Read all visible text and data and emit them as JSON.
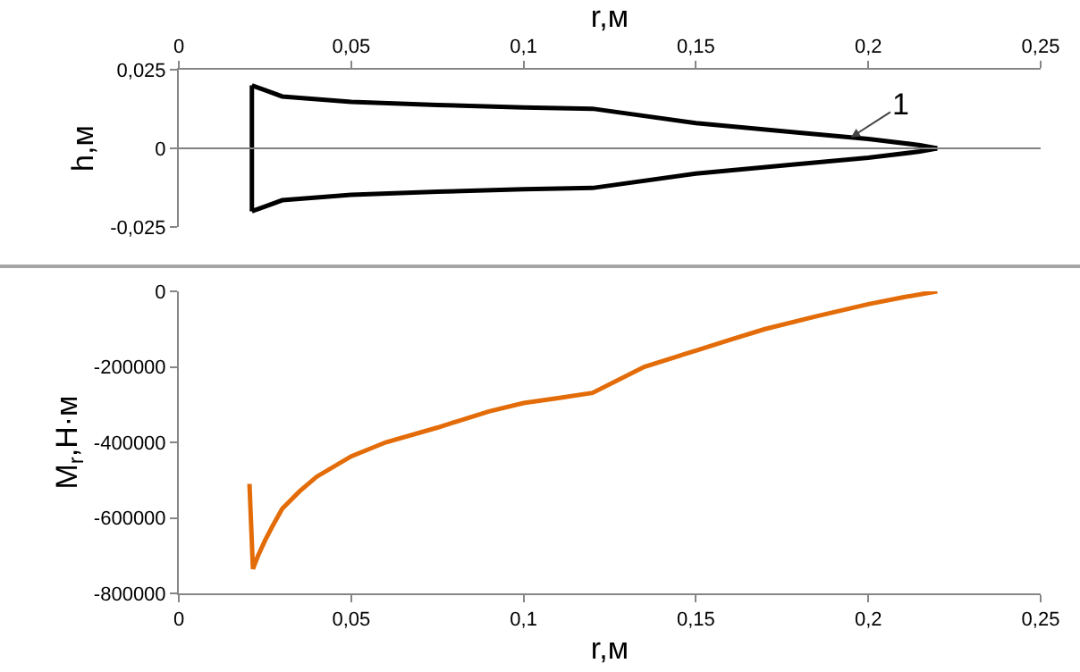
{
  "chart_data": [
    {
      "type": "line",
      "ylabel": "h,м",
      "xlabel": "r,м",
      "xlim": [
        0,
        0.25
      ],
      "xticks": [
        0,
        {
          "value": 0.05,
          "label": "0,05"
        },
        {
          "value": 0.1,
          "label": "0,1"
        },
        {
          "value": 0.15,
          "label": "0,15"
        },
        {
          "value": 0.2,
          "label": "0,2"
        },
        {
          "value": 0.25,
          "label": "0,25"
        }
      ],
      "ylim": [
        -0.025,
        0.025
      ],
      "yticks": [
        {
          "value": -0.025,
          "label": "-0,025"
        },
        0,
        {
          "value": 0.025,
          "label": "0,025"
        }
      ],
      "grid": false,
      "marker": "none",
      "line_style": "solid",
      "series": [
        {
          "color": "#000000",
          "x": [
            0.0212,
            0.025,
            0.03,
            0.05,
            0.075,
            0.1,
            0.12,
            0.15,
            0.18,
            0.2,
            0.215,
            0.22
          ],
          "values": [
            0.02,
            0.0185,
            0.0165,
            0.0148,
            0.0138,
            0.013,
            0.0126,
            0.008,
            0.005,
            0.003,
            0.001,
            0
          ]
        },
        {
          "color": "#000000",
          "x": [
            0.0212,
            0.025,
            0.03,
            0.05,
            0.075,
            0.1,
            0.12,
            0.15,
            0.18,
            0.2,
            0.215,
            0.22
          ],
          "values": [
            -0.02,
            -0.0185,
            -0.0165,
            -0.0148,
            -0.0138,
            -0.013,
            -0.0126,
            -0.008,
            -0.005,
            -0.003,
            -0.001,
            0
          ]
        },
        {
          "color": "#000000",
          "x": [
            0.0212,
            0.0212
          ],
          "values": [
            -0.02,
            0.02
          ]
        }
      ],
      "ref_lines": [
        {
          "axis": "y",
          "value": 0,
          "color": "#808080"
        }
      ],
      "annotations": [
        {
          "text": "1",
          "x": 0.195,
          "y": 0.0035
        }
      ]
    },
    {
      "type": "line",
      "xlabel": "r,м",
      "ylabel": "M$_{r}$,Н·м",
      "xlim": [
        0,
        0.25
      ],
      "xticks": [
        0,
        {
          "value": 0.05,
          "label": "0,05"
        },
        {
          "value": 0.1,
          "label": "0,1"
        },
        {
          "value": 0.15,
          "label": "0,15"
        },
        {
          "value": 0.2,
          "label": "0,2"
        },
        {
          "value": 0.25,
          "label": "0,25"
        }
      ],
      "ylim": [
        -800000,
        0
      ],
      "yticks": [
        -800000,
        -600000,
        -400000,
        -200000,
        0
      ],
      "grid": false,
      "marker": "none",
      "line_style": "solid",
      "series": [
        {
          "color": "#e36c09",
          "x": [
            0.0205,
            0.0215,
            0.023,
            0.025,
            0.027,
            0.03,
            0.035,
            0.04,
            0.05,
            0.06,
            0.075,
            0.09,
            0.1,
            0.11,
            0.12,
            0.135,
            0.15,
            0.16,
            0.17,
            0.185,
            0.2,
            0.21,
            0.22
          ],
          "values": [
            -510000,
            -735000,
            -700000,
            -660000,
            -625000,
            -576000,
            -530000,
            -491000,
            -437000,
            -400000,
            -361000,
            -318000,
            -296000,
            -283000,
            -269000,
            -200000,
            -157000,
            -128000,
            -100000,
            -66000,
            -34000,
            -16000,
            0
          ]
        }
      ]
    }
  ]
}
